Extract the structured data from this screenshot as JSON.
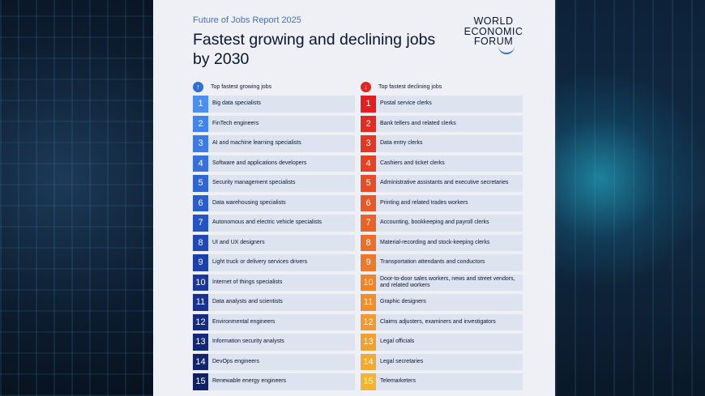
{
  "report_title": "Future of Jobs Report 2025",
  "headline": "Fastest growing and declining jobs by 2030",
  "logo": {
    "line1": "WORLD",
    "line2": "ECONOMIC",
    "line3": "FORUM"
  },
  "growing": {
    "title": "Top fastest growing jobs",
    "icon": "arrow-up-icon",
    "colors": [
      "#4a8ef0",
      "#4384ea",
      "#3d7ae3",
      "#3670db",
      "#3066d2",
      "#2a5ecb",
      "#2454c2",
      "#2049b6",
      "#1c40aa",
      "#19389e",
      "#173292",
      "#152c86",
      "#13287b",
      "#122470",
      "#102066"
    ],
    "items": [
      {
        "rank": "1",
        "label": "Big data specialists"
      },
      {
        "rank": "2",
        "label": "FinTech engineers"
      },
      {
        "rank": "3",
        "label": "AI and machine learning specialists"
      },
      {
        "rank": "4",
        "label": "Software and applications developers"
      },
      {
        "rank": "5",
        "label": "Security management specialists"
      },
      {
        "rank": "6",
        "label": "Data warehousing specialists"
      },
      {
        "rank": "7",
        "label": "Autonomous and electric vehicle specialists"
      },
      {
        "rank": "8",
        "label": "UI and UX designers"
      },
      {
        "rank": "9",
        "label": "Light truck or delivery services drivers"
      },
      {
        "rank": "10",
        "label": "Internet of things specialists"
      },
      {
        "rank": "11",
        "label": "Data analysts and scientists"
      },
      {
        "rank": "12",
        "label": "Environmental engineers"
      },
      {
        "rank": "13",
        "label": "Information security analysts"
      },
      {
        "rank": "14",
        "label": "DevOps engineers"
      },
      {
        "rank": "15",
        "label": "Renewable energy engineers"
      }
    ]
  },
  "declining": {
    "title": "Top fastest declining jobs",
    "icon": "arrow-down-icon",
    "colors": [
      "#e41e1e",
      "#e52a1f",
      "#e63520",
      "#e84122",
      "#e94c24",
      "#eb5724",
      "#ec6226",
      "#ee6d27",
      "#ef7828",
      "#f0832a",
      "#f18e2b",
      "#f2982c",
      "#f3a12d",
      "#f4aa2e",
      "#f5b32f"
    ],
    "items": [
      {
        "rank": "1",
        "label": "Postal service clerks"
      },
      {
        "rank": "2",
        "label": "Bank tellers and related clerks"
      },
      {
        "rank": "3",
        "label": "Data entry clerks"
      },
      {
        "rank": "4",
        "label": "Cashiers and ticket clerks"
      },
      {
        "rank": "5",
        "label": "Administrative assistants and executive secretaries"
      },
      {
        "rank": "6",
        "label": "Printing and related trades workers"
      },
      {
        "rank": "7",
        "label": "Accounting, bookkeeping and payroll clerks"
      },
      {
        "rank": "8",
        "label": "Material-recording and stock-keeping clerks"
      },
      {
        "rank": "9",
        "label": "Transportation attendants and conductors"
      },
      {
        "rank": "10",
        "label": "Door-to-door sales workers, news and street vendors, and related workers"
      },
      {
        "rank": "11",
        "label": "Graphic designers"
      },
      {
        "rank": "12",
        "label": "Claims adjusters, examiners and investigators"
      },
      {
        "rank": "13",
        "label": "Legal officials"
      },
      {
        "rank": "14",
        "label": "Legal secretaries"
      },
      {
        "rank": "15",
        "label": "Telemarketers"
      }
    ]
  }
}
